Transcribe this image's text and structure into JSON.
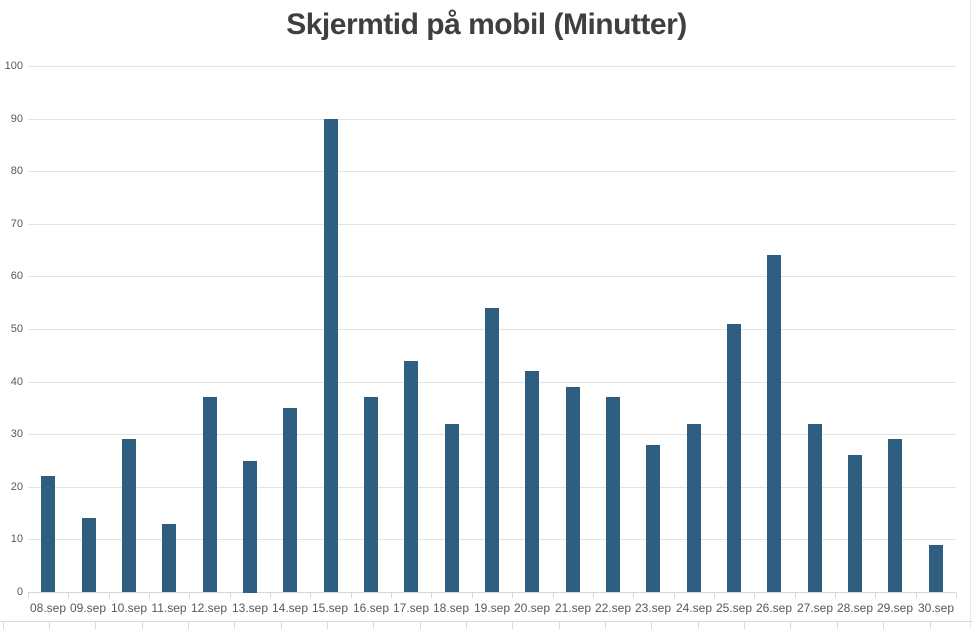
{
  "chart_data": {
    "type": "bar",
    "title": "Skjermtid på mobil (Minutter)",
    "categories": [
      "08.sep",
      "09.sep",
      "10.sep",
      "11.sep",
      "12.sep",
      "13.sep",
      "14.sep",
      "15.sep",
      "16.sep",
      "17.sep",
      "18.sep",
      "19.sep",
      "20.sep",
      "21.sep",
      "22.sep",
      "23.sep",
      "24.sep",
      "25.sep",
      "26.sep",
      "27.sep",
      "28.sep",
      "29.sep",
      "30.sep"
    ],
    "values": [
      22,
      14,
      29,
      13,
      37,
      25,
      35,
      90,
      37,
      44,
      32,
      54,
      42,
      39,
      37,
      28,
      32,
      51,
      64,
      32,
      26,
      29,
      9
    ],
    "xlabel": "",
    "ylabel": "",
    "ylim": [
      0,
      100
    ],
    "ytick_step": 10,
    "grid": true,
    "legend": false
  },
  "colors": {
    "background": "#FFFFFF",
    "title_text": "#3F3F3F",
    "axis_text": "#595959",
    "gridline": "#E2E2E2",
    "axis_line": "#D6D6D6",
    "bar": "#2E5F80",
    "worksheet_line": "#D9D9D9"
  }
}
